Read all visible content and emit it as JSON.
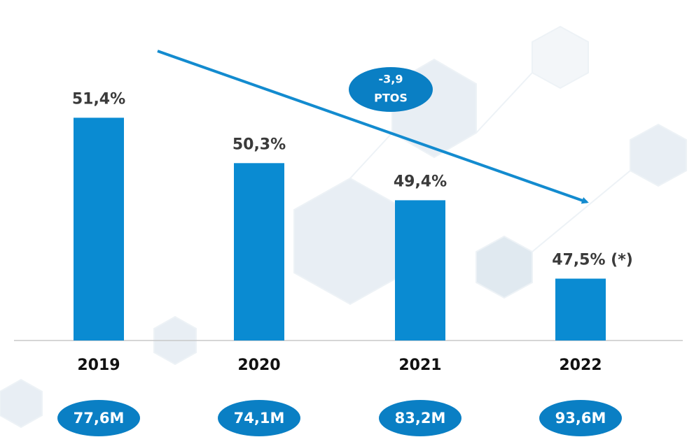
{
  "chart_data": {
    "type": "bar",
    "categories": [
      "2019",
      "2020",
      "2021",
      "2022"
    ],
    "values": [
      51.4,
      50.3,
      49.4,
      47.5
    ],
    "value_labels": [
      "51,4%",
      "50,3%",
      "49,4%",
      "47,5% (*)"
    ],
    "totals": [
      "77,6M",
      "74,1M",
      "83,2M",
      "93,6M"
    ],
    "annotation": [
      "-3,9",
      "PTOS"
    ],
    "color": "#0a8bd2",
    "badge_color": "#0a7fc4",
    "ylim": [
      46,
      52
    ]
  }
}
